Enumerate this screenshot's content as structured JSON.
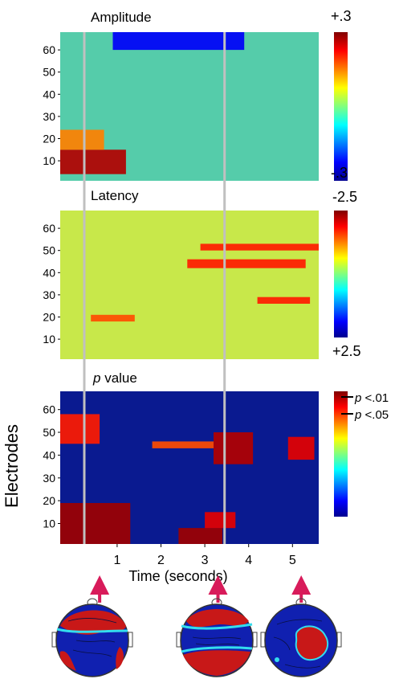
{
  "chart_data": {
    "type": "heatmap",
    "x_axis": {
      "label": "Time (seconds)",
      "ticks": [
        "1",
        "2",
        "3",
        "4",
        "5"
      ],
      "tick_values": [
        1,
        2,
        3,
        4,
        5
      ],
      "range": [
        -0.3,
        5.6
      ]
    },
    "y_axis": {
      "label": "Electrodes",
      "range": [
        1,
        68
      ]
    },
    "markers": {
      "vertical_lines_at_seconds": [
        0.25,
        3.45
      ],
      "arrows_at_seconds": [
        0.6,
        3.3,
        5.2
      ]
    },
    "panels": [
      {
        "title": "Amplitude",
        "yticks": [
          10,
          20,
          30,
          40,
          50,
          60
        ],
        "colorbar": {
          "max_label": "+.3",
          "min_label": "-.3",
          "range": [
            -0.3,
            0.3
          ],
          "colormap": "jet"
        },
        "regions": [
          {
            "electrodes": [
              4,
              15
            ],
            "seconds": [
              -0.3,
              1.2
            ],
            "level": 0.95
          },
          {
            "electrodes": [
              15,
              24
            ],
            "seconds": [
              -0.3,
              0.7
            ],
            "level": 0.75
          },
          {
            "electrodes": [
              60,
              68
            ],
            "seconds": [
              0.9,
              3.9
            ],
            "level": 0.12
          }
        ]
      },
      {
        "title": "Latency",
        "yticks": [
          10,
          20,
          30,
          40,
          50,
          60
        ],
        "colorbar": {
          "max_label": "-2.5",
          "min_label": "+2.5",
          "range": [
            2.5,
            -2.5
          ],
          "colormap": "jet"
        },
        "regions": [
          {
            "electrodes": [
              50,
              53
            ],
            "seconds": [
              2.9,
              5.6
            ],
            "level": 0.85
          },
          {
            "electrodes": [
              42,
              46
            ],
            "seconds": [
              2.6,
              5.3
            ],
            "level": 0.85
          },
          {
            "electrodes": [
              26,
              29
            ],
            "seconds": [
              4.2,
              5.4
            ],
            "level": 0.85
          },
          {
            "electrodes": [
              18,
              21
            ],
            "seconds": [
              0.4,
              1.4
            ],
            "level": 0.8
          }
        ]
      },
      {
        "title": "p value",
        "title_italic": "p",
        "title_rest": " value",
        "yticks": [
          10,
          20,
          30,
          40,
          50,
          60
        ],
        "colorbar": {
          "colormap": "jet",
          "thresholds": [
            {
              "prefix": "p",
              "label": " <.01",
              "value": 0.01
            },
            {
              "prefix": "p",
              "label": " <.05",
              "value": 0.05
            }
          ]
        },
        "regions": [
          {
            "electrodes": [
              1,
              19
            ],
            "seconds": [
              -0.3,
              1.3
            ],
            "level": 0.97
          },
          {
            "electrodes": [
              1,
              8
            ],
            "seconds": [
              2.4,
              3.4
            ],
            "level": 0.97
          },
          {
            "electrodes": [
              8,
              15
            ],
            "seconds": [
              3.0,
              3.7
            ],
            "level": 0.9
          },
          {
            "electrodes": [
              36,
              50
            ],
            "seconds": [
              3.2,
              4.1
            ],
            "level": 0.95
          },
          {
            "electrodes": [
              38,
              48
            ],
            "seconds": [
              4.9,
              5.5
            ],
            "level": 0.9
          },
          {
            "electrodes": [
              45,
              58
            ],
            "seconds": [
              -0.3,
              0.6
            ],
            "level": 0.85
          },
          {
            "electrodes": [
              43,
              46
            ],
            "seconds": [
              1.8,
              3.2
            ],
            "level": 0.8
          }
        ]
      }
    ],
    "topomaps": {
      "count": 3,
      "aligned_with_arrows": [
        0.6,
        3.3,
        5.2
      ]
    }
  }
}
